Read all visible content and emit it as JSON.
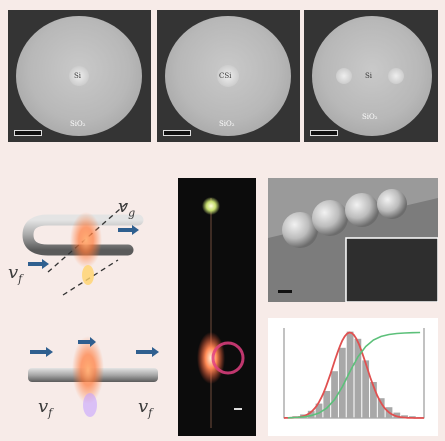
{
  "top_row": [
    {
      "core_label": "Si",
      "matrix_label": "SiO₂"
    },
    {
      "core_label": "CSi",
      "matrix_label": "SiO₂"
    },
    {
      "core_label": "Si",
      "matrix_label": "SiO₂"
    }
  ],
  "schematic": {
    "label_top_right": "v",
    "label_top_right_sub": "g",
    "label_top_left": "v",
    "label_top_left_sub": "f",
    "label_bottom_left": "v",
    "label_bottom_left_sub": "f",
    "label_bottom_right": "v",
    "label_bottom_right_sub": "f"
  },
  "colors": {
    "background": "#f7ebe8",
    "sem_disk": "#b8b8b8",
    "arrow_blue": "#2f5f8f",
    "glow_orange": "#ff7a3a",
    "histogram_bar": "#a8a8a8",
    "fit_red": "#e05050",
    "cumulative_green": "#5cc07a"
  },
  "chart_data": {
    "type": "bar",
    "note_series": [
      {
        "name": "",
        "values": [
          1,
          2,
          4,
          8,
          16,
          30,
          52,
          78,
          96,
          88,
          64,
          40,
          22,
          12,
          6,
          3,
          2,
          1
        ]
      }
    ],
    "categories": [
      "",
      "",
      "",
      "",
      "",
      "",
      "",
      "",
      "",
      "",
      "",
      "",
      "",
      "",
      "",
      "",
      "",
      ""
    ],
    "title": "",
    "xlabel": "",
    "ylabel": ""
  }
}
